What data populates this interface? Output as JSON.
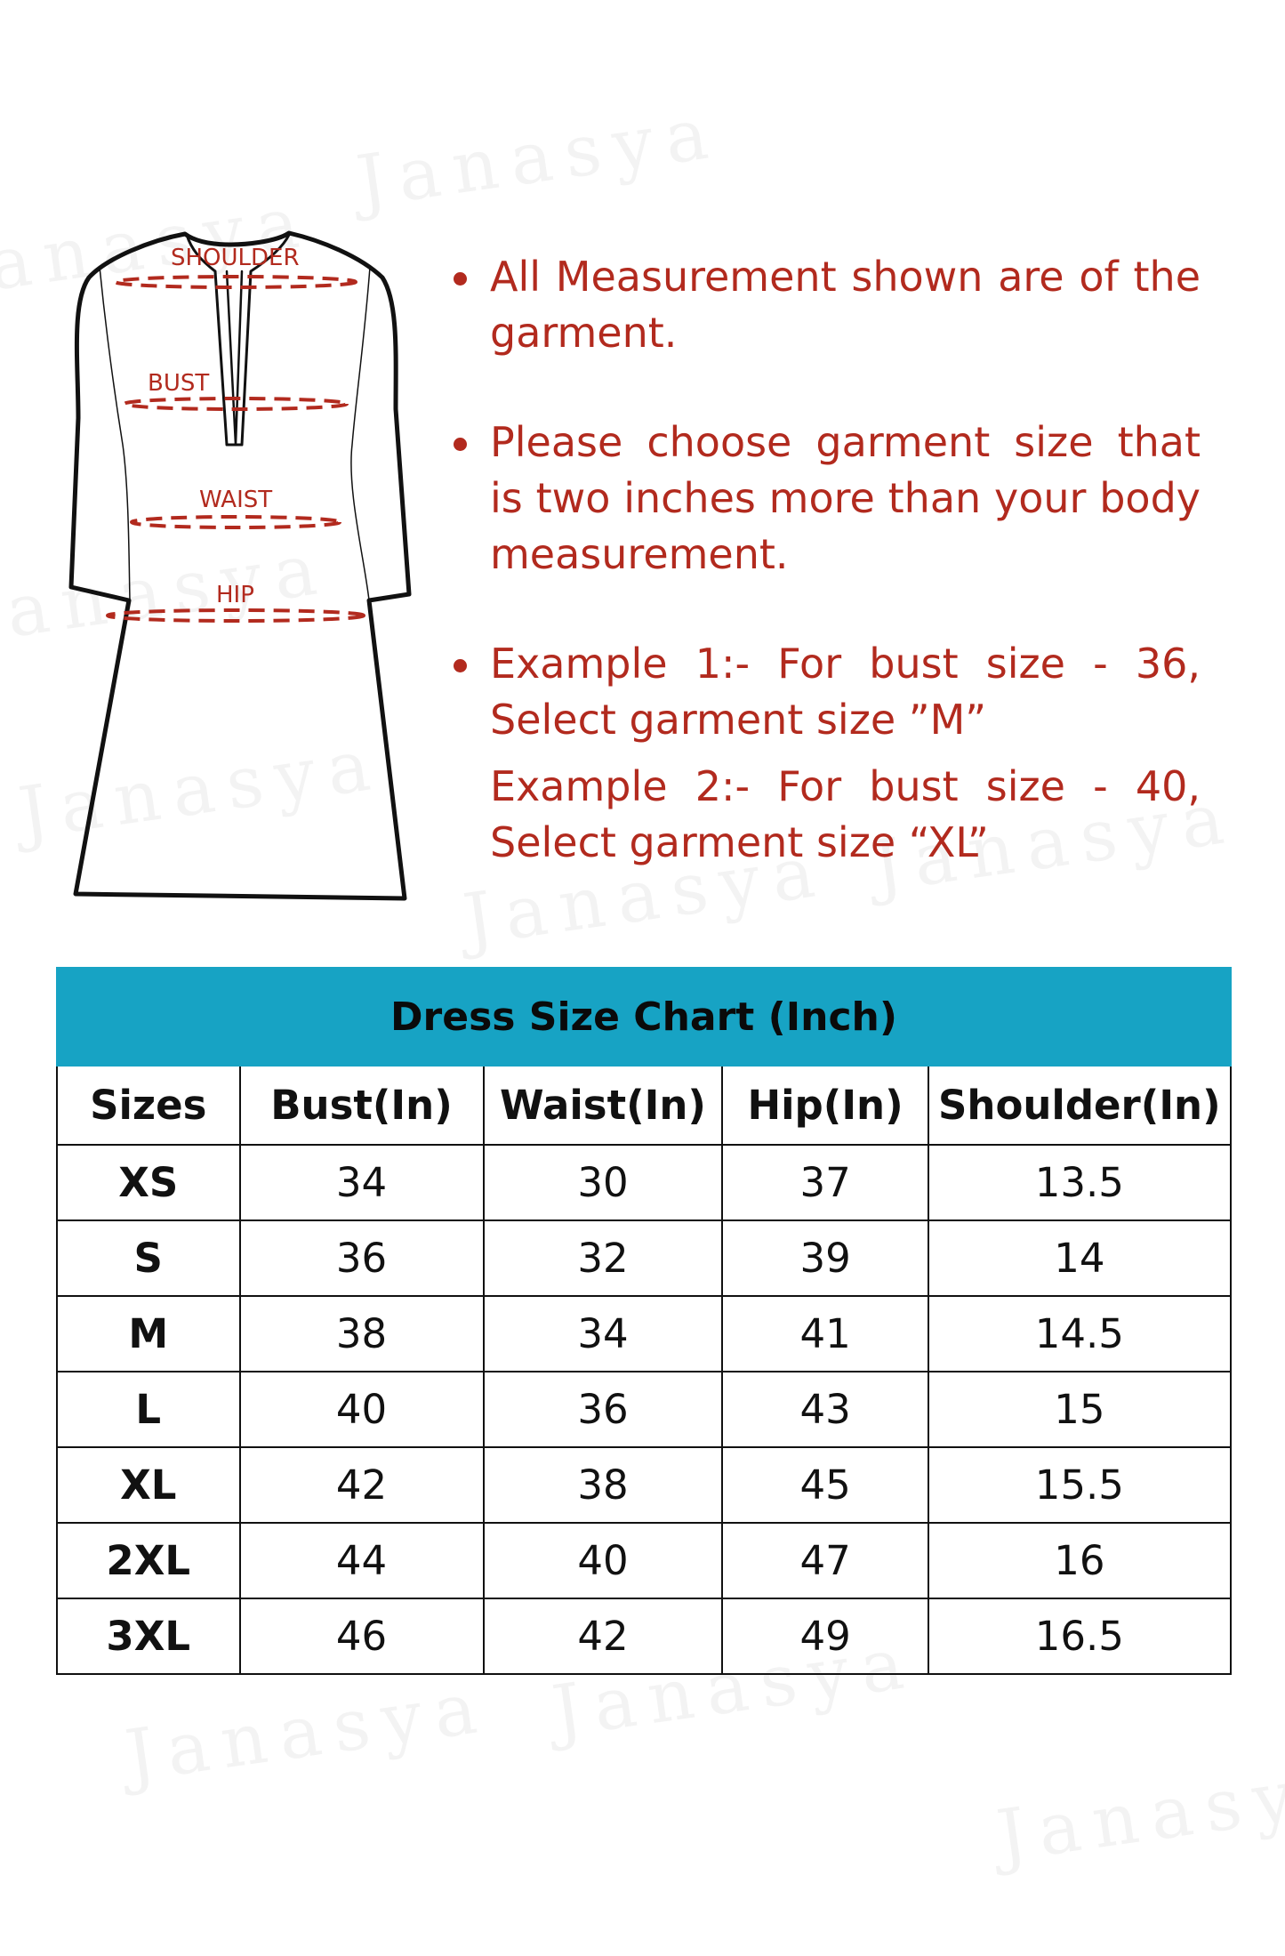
{
  "watermark": {
    "brand": "Janasya"
  },
  "diagram": {
    "labels": {
      "shoulder": "SHOULDER",
      "bust": "BUST",
      "waist": "WAIST",
      "hip": "HIP"
    },
    "outline_color": "#111111",
    "measure_color": "#b22a1e"
  },
  "notes": {
    "items": [
      "All Measurement shown are of the garment.",
      "Please choose garment size that is two inches more than your body measurement.",
      "Example 1:- For bust size - 36, Select garment size ”M”"
    ],
    "extra": "Example 2:- For bust size - 40, Select garment size “XL”",
    "color": "#b22a1e"
  },
  "size_chart": {
    "title": "Dress Size Chart (Inch)",
    "header_color": "#17a3c4",
    "columns": [
      "Sizes",
      "Bust(In)",
      "Waist(In)",
      "Hip(In)",
      "Shoulder(In)"
    ],
    "rows": [
      [
        "XS",
        "34",
        "30",
        "37",
        "13.5"
      ],
      [
        "S",
        "36",
        "32",
        "39",
        "14"
      ],
      [
        "M",
        "38",
        "34",
        "41",
        "14.5"
      ],
      [
        "L",
        "40",
        "36",
        "43",
        "15"
      ],
      [
        "XL",
        "42",
        "38",
        "45",
        "15.5"
      ],
      [
        "2XL",
        "44",
        "40",
        "47",
        "16"
      ],
      [
        "3XL",
        "46",
        "42",
        "49",
        "16.5"
      ]
    ]
  }
}
